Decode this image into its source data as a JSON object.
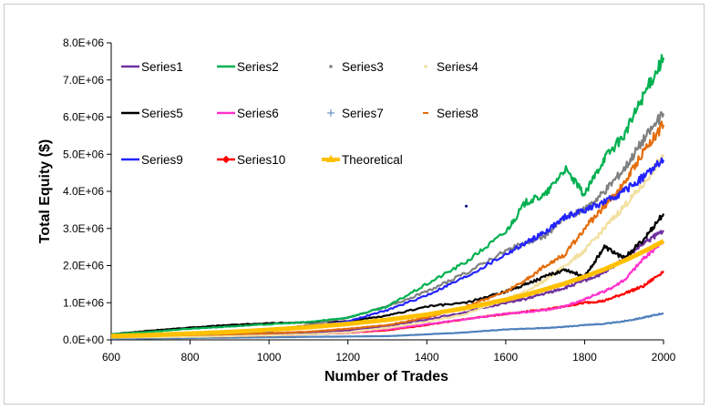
{
  "chart_data": {
    "type": "line",
    "title": "",
    "xlabel": "Number of Trades",
    "ylabel": "Total Equity ($)",
    "xlim": [
      600,
      2000
    ],
    "ylim": [
      0,
      8000000
    ],
    "x_ticks": [
      600,
      800,
      1000,
      1200,
      1400,
      1600,
      1800,
      2000
    ],
    "x_tick_labels": [
      "600",
      "800",
      "1000",
      "1200",
      "1400",
      "1600",
      "1800",
      "2000"
    ],
    "y_ticks": [
      0,
      1000000,
      2000000,
      3000000,
      4000000,
      5000000,
      6000000,
      7000000,
      8000000
    ],
    "y_tick_labels": [
      "0.0E+00",
      "1.0E+06",
      "2.0E+06",
      "3.0E+06",
      "4.0E+06",
      "5.0E+06",
      "6.0E+06",
      "7.0E+06",
      "8.0E+06"
    ],
    "grid": false,
    "legend_position": "top-left (inside plot)",
    "x": [
      600,
      700,
      800,
      900,
      1000,
      1100,
      1200,
      1300,
      1400,
      1500,
      1600,
      1650,
      1700,
      1750,
      1800,
      1850,
      1900,
      1950,
      2000
    ],
    "series": [
      {
        "name": "Series1",
        "color": "#7030a0",
        "values": [
          80000,
          90000,
          110000,
          130000,
          150000,
          200000,
          260000,
          380000,
          550000,
          750000,
          1000000,
          1100000,
          1250000,
          1400000,
          1600000,
          1800000,
          2200000,
          2600000,
          2950000
        ]
      },
      {
        "name": "Series2",
        "color": "#00b050",
        "values": [
          150000,
          220000,
          300000,
          360000,
          420000,
          480000,
          600000,
          900000,
          1500000,
          2100000,
          2900000,
          3700000,
          3900000,
          4600000,
          3900000,
          4900000,
          5500000,
          6600000,
          7600000
        ]
      },
      {
        "name": "Series3",
        "color": "#808080",
        "values": [
          90000,
          120000,
          160000,
          200000,
          260000,
          400000,
          600000,
          900000,
          1300000,
          1800000,
          2400000,
          2600000,
          2800000,
          3300000,
          3500000,
          4000000,
          4600000,
          5400000,
          6100000
        ]
      },
      {
        "name": "Series4",
        "color": "#f2e0a0",
        "values": [
          60000,
          70000,
          80000,
          100000,
          120000,
          150000,
          200000,
          320000,
          480000,
          700000,
          1100000,
          1300000,
          1600000,
          2000000,
          2400000,
          3000000,
          3600000,
          4200000,
          5000000
        ]
      },
      {
        "name": "Series5",
        "color": "#000000",
        "values": [
          150000,
          250000,
          330000,
          400000,
          450000,
          470000,
          500000,
          650000,
          900000,
          1000000,
          1300000,
          1500000,
          1700000,
          1900000,
          1700000,
          2500000,
          2200000,
          2700000,
          3400000
        ]
      },
      {
        "name": "Series6",
        "color": "#ff33cc",
        "values": [
          70000,
          80000,
          100000,
          120000,
          140000,
          160000,
          200000,
          280000,
          420000,
          560000,
          700000,
          750000,
          800000,
          900000,
          1100000,
          1300000,
          1600000,
          2200000,
          2650000
        ]
      },
      {
        "name": "Series7",
        "color": "#4f81bd",
        "values": [
          30000,
          40000,
          50000,
          60000,
          70000,
          80000,
          90000,
          100000,
          150000,
          200000,
          280000,
          300000,
          320000,
          350000,
          400000,
          430000,
          500000,
          600000,
          720000
        ]
      },
      {
        "name": "Series8",
        "color": "#e46c0a",
        "values": [
          90000,
          110000,
          130000,
          150000,
          180000,
          220000,
          300000,
          400000,
          600000,
          900000,
          1300000,
          1600000,
          2000000,
          2300000,
          3000000,
          3600000,
          4200000,
          5100000,
          5800000
        ]
      },
      {
        "name": "Series9",
        "color": "#2323ff",
        "values": [
          90000,
          110000,
          140000,
          180000,
          230000,
          350000,
          500000,
          800000,
          1200000,
          1700000,
          2300000,
          2600000,
          2900000,
          3300000,
          3500000,
          3700000,
          4000000,
          4400000,
          4850000
        ]
      },
      {
        "name": "Series10",
        "color": "#ff0000",
        "values": [
          70000,
          80000,
          90000,
          100000,
          120000,
          150000,
          190000,
          260000,
          400000,
          560000,
          700000,
          760000,
          820000,
          900000,
          1000000,
          1050000,
          1250000,
          1450000,
          1850000
        ]
      },
      {
        "name": "Theoretical",
        "color": "#ffc000",
        "values": [
          100000,
          130000,
          170000,
          210000,
          270000,
          340000,
          430000,
          540000,
          680000,
          860000,
          1080000,
          1210000,
          1360000,
          1520000,
          1700000,
          1900000,
          2130000,
          2380000,
          2660000
        ]
      }
    ],
    "stray_points": [
      {
        "x": 1500,
        "y": 3600000,
        "color": "#000080"
      }
    ]
  }
}
